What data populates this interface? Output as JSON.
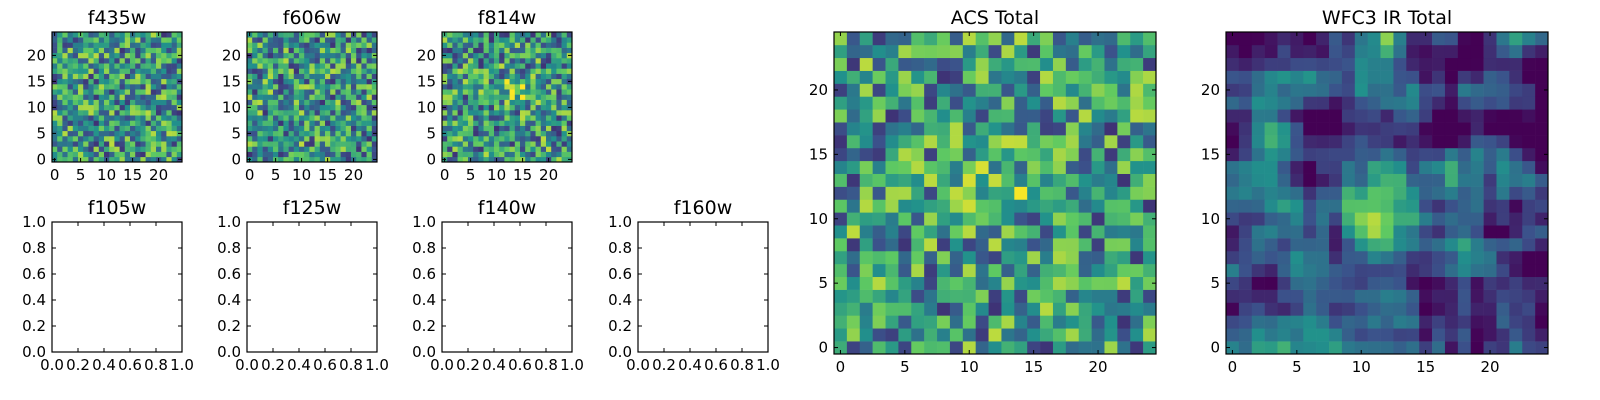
{
  "figure": {
    "colormap_stops": [
      "#440154",
      "#3b528b",
      "#21918c",
      "#5ec962",
      "#fde725"
    ]
  },
  "chart_data": [
    {
      "type": "heatmap",
      "title": "f435w",
      "grid_size": 25,
      "xlim": [
        0,
        24
      ],
      "ylim": [
        0,
        24
      ],
      "xticks": [
        "0",
        "5",
        "10",
        "15",
        "20"
      ],
      "yticks": [
        "0",
        "5",
        "10",
        "15",
        "20"
      ],
      "value_range": [
        0,
        1
      ],
      "content": "noise",
      "seed": 435
    },
    {
      "type": "heatmap",
      "title": "f606w",
      "grid_size": 25,
      "xlim": [
        0,
        24
      ],
      "ylim": [
        0,
        24
      ],
      "xticks": [
        "0",
        "5",
        "10",
        "15",
        "20"
      ],
      "yticks": [
        "0",
        "5",
        "10",
        "15",
        "20"
      ],
      "value_range": [
        0,
        1
      ],
      "content": "noise",
      "seed": 606
    },
    {
      "type": "heatmap",
      "title": "f814w",
      "grid_size": 25,
      "xlim": [
        0,
        24
      ],
      "ylim": [
        0,
        24
      ],
      "xticks": [
        "0",
        "5",
        "10",
        "15",
        "20"
      ],
      "yticks": [
        "0",
        "5",
        "10",
        "15",
        "20"
      ],
      "value_range": [
        0,
        1
      ],
      "content": "noise",
      "seed": 814,
      "source": {
        "x": 13,
        "y": 13,
        "peak": 0.25,
        "width": 2.0
      }
    },
    {
      "type": "empty",
      "title": "f105w",
      "xlim": [
        0,
        1
      ],
      "ylim": [
        0,
        1
      ],
      "xticks": [
        "0.0",
        "0.2",
        "0.4",
        "0.6",
        "0.8",
        "1.0"
      ],
      "yticks": [
        "0.0",
        "0.2",
        "0.4",
        "0.6",
        "0.8",
        "1.0"
      ]
    },
    {
      "type": "empty",
      "title": "f125w",
      "xlim": [
        0,
        1
      ],
      "ylim": [
        0,
        1
      ],
      "xticks": [
        "0.0",
        "0.2",
        "0.4",
        "0.6",
        "0.8",
        "1.0"
      ],
      "yticks": [
        "0.0",
        "0.2",
        "0.4",
        "0.6",
        "0.8",
        "1.0"
      ]
    },
    {
      "type": "empty",
      "title": "f140w",
      "xlim": [
        0,
        1
      ],
      "ylim": [
        0,
        1
      ],
      "xticks": [
        "0.0",
        "0.2",
        "0.4",
        "0.6",
        "0.8",
        "1.0"
      ],
      "yticks": [
        "0.0",
        "0.2",
        "0.4",
        "0.6",
        "0.8",
        "1.0"
      ]
    },
    {
      "type": "empty",
      "title": "f160w",
      "xlim": [
        0,
        1
      ],
      "ylim": [
        0,
        1
      ],
      "xticks": [
        "0.0",
        "0.2",
        "0.4",
        "0.6",
        "0.8",
        "1.0"
      ],
      "yticks": [
        "0.0",
        "0.2",
        "0.4",
        "0.6",
        "0.8",
        "1.0"
      ]
    },
    {
      "type": "heatmap",
      "title": "ACS Total",
      "grid_size": 25,
      "xlim": [
        0,
        24
      ],
      "ylim": [
        0,
        24
      ],
      "xticks": [
        "0",
        "5",
        "10",
        "15",
        "20"
      ],
      "yticks": [
        "0",
        "5",
        "10",
        "15",
        "20"
      ],
      "value_range": [
        0,
        1
      ],
      "content": "noise_with_source",
      "seed": 1001,
      "source": {
        "x": 12,
        "y": 12,
        "peak": 0.35,
        "width": 1.6
      }
    },
    {
      "type": "heatmap",
      "title": "WFC3 IR Total",
      "grid_size": 25,
      "xlim": [
        0,
        24
      ],
      "ylim": [
        0,
        24
      ],
      "xticks": [
        "0",
        "5",
        "10",
        "15",
        "20"
      ],
      "yticks": [
        "0",
        "5",
        "10",
        "15",
        "20"
      ],
      "value_range": [
        0,
        1
      ],
      "content": "smooth_with_source",
      "seed": 2002,
      "source": {
        "x": 12,
        "y": 11,
        "peak": 0.55,
        "width": 2.2
      }
    }
  ]
}
